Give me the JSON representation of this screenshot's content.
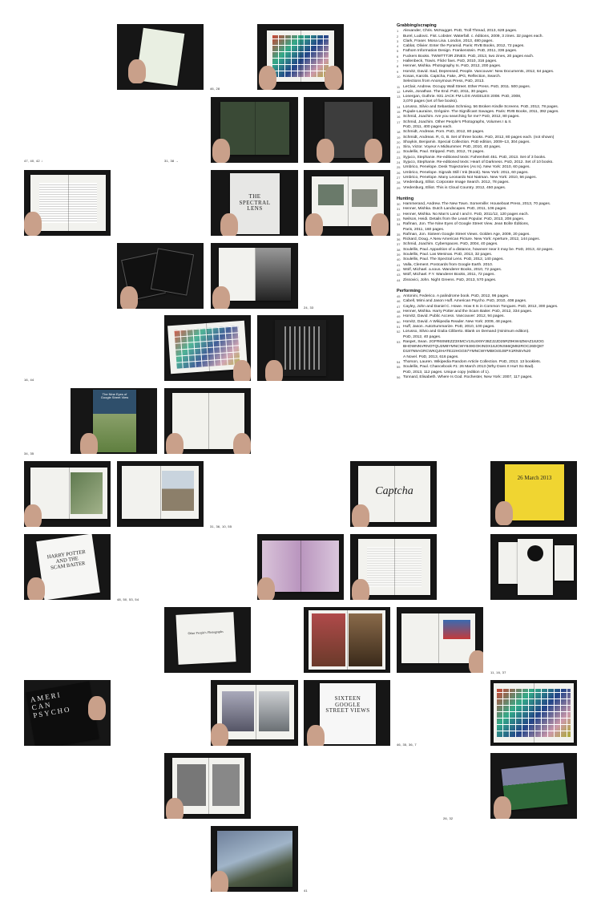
{
  "sections": [
    {
      "heading": "Grabbing/scraping",
      "entries": [
        {
          "n": "1",
          "text": "Alexander, Chris. McNugget. PoD, Troll Thread, 2013, 628 pages."
        },
        {
          "n": "2",
          "text": "Burel, Ludovic. Fist. Lobster. Waterfall. c. éditions, 2009, 3 zines. 32 pages each."
        },
        {
          "n": "3",
          "text": "Clark, Fraser. Mona Lisa. London, 2013, 480 pages."
        },
        {
          "n": "4",
          "text": "Cablat, Olivier. Enter the Pyramid. Paris: RVB Books, 2012, 72 pages."
        },
        {
          "n": "5",
          "text": "Fathom Information Design. Frankenstein. PoD, 2011, 336 pages."
        },
        {
          "n": "6",
          "text": "Fuckers Books. TWWTTT3R ZINES. PoD, 2013, two zines, 20 pages each."
        },
        {
          "n": "7",
          "text": "Hallenbeck, Travis. Flickr favs. PoD, 2010, 316 pages."
        },
        {
          "n": "8",
          "text": "Henner, Mishka. Photography Is. PoD, 2012, 200 pages."
        },
        {
          "n": "9",
          "text": "Horvitz, David. Sad, Depressed, People. Vancouver: New Documents, 2012, 64 pages."
        },
        {
          "n": "10",
          "text": "Kosas, Karolis. Captcha, Fake, JPG, Reflection, Search.\nSelections from Anonymous Press, PoD, 2013."
        },
        {
          "n": "11",
          "text": "LeClair, Andrew. Occupy Wall Street. Ether Press. PoD, 2011. 500 pages."
        },
        {
          "n": "12",
          "text": "Lewis, Jonathan. The End. PoD, 2011, 30 pages."
        },
        {
          "n": "13",
          "text": "Lonergan, Guthrie. 931 JACK FM LOS ANGELES 2008. PoD, 2008,\n3,070 pages (set of five books)."
        },
        {
          "n": "14",
          "text": "Lorusso, Silvio and Sebastian Schmieg. 56 Broken Kindle Screens. PoD, 2012, 78 pages."
        },
        {
          "n": "15",
          "text": "Pujade-Lauraine, Grégoire. The Significant Savages. Paris: RVB Books, 2011, 392 pages."
        },
        {
          "n": "16",
          "text": "Schmid, Joachim. Are you searching for me? PoD, 2012, 80 pages."
        },
        {
          "n": "17",
          "text": "Schmid, Joachim. Other People's Photographs, Volumes I & II.\nPoD, 2011, 400 pages each."
        },
        {
          "n": "18",
          "text": "Schmidt, Andreas. Porn. PoD, 2012, 80 pages."
        },
        {
          "n": "19",
          "text": "Schmidt, Andreas. R, G, B. Set of three books. PoD, 2012, 80 pages each. (not shown)"
        },
        {
          "n": "20",
          "text": "Shaykin, Benjamin. Special Collection. PoD edition, 2009–13, 304 pages."
        },
        {
          "n": "21",
          "text": "Sira, Victor. Voyeur A Midsummer. PoD, 2010, 40 pages."
        },
        {
          "n": "22",
          "text": "Soulellis, Paul. Stripped. PoD, 2012, 74 pages."
        },
        {
          "n": "23",
          "text": "Syjuco, Stephanie. Re-editioned texts: Fahrenheit 451. PoD, 2013. Set of 3 books."
        },
        {
          "n": "24",
          "text": "Syjuco, Stephanie. Re-editioned texts: Heart of Darkness. PoD, 2012. Set of 10 books."
        },
        {
          "n": "25",
          "text": "Umbrico, Penelope. Desk Trajectories (As Is). New York: 2010, 60 pages."
        },
        {
          "n": "26",
          "text": "Umbrico, Penelope. Signals Still / Ink (Book). New York: 2011, 60 pages."
        },
        {
          "n": "27",
          "text": "Umbrico, Penelope. Many Leonardo Not Natman. New York: 2010, 56 pages."
        },
        {
          "n": "28",
          "text": "Vredenburg, Elliot. Corporate Image Search. 2012, 78 pages."
        },
        {
          "n": "29",
          "text": "Vredenburg, Elliot. This is Cloud Country. 2012, 450 pages."
        }
      ]
    },
    {
      "heading": "Hunting",
      "entries": [
        {
          "n": "30",
          "text": "Hammerand, Andrew. The New Town. Somerville: Houseboat Press, 2013, 70 pages."
        },
        {
          "n": "31",
          "text": "Henner, Mishka. Dutch Landscapes. PoD, 2011, 106 pages."
        },
        {
          "n": "32",
          "text": "Henner, Mishka. No Man's Land I and II. PoD, 2011/12, 120 pages each."
        },
        {
          "n": "33",
          "text": "Neilson, Heidi. Details from the Least Popular. PoD, 2013, 208 pages."
        },
        {
          "n": "34",
          "text": "Rafman, Jon. The Nine Eyes of Google Street View. Jean Boîte Éditions,\nParis, 2011, 160 pages."
        },
        {
          "n": "35",
          "text": "Rafman, Jon. Sixteen Google Street Views. Golden Age, 2009, 20 pages."
        },
        {
          "n": "36",
          "text": "Rickard, Doug. A New American Picture. New York: Aperture, 2012, 144 pages."
        },
        {
          "n": "37",
          "text": "Schmid, Joachim. Cyberspaces. PoD, 2004, 40 pages."
        },
        {
          "n": "38",
          "text": "Soulellis, Paul. Apparition of a distance, however near it may be. PoD, 2013, 42 pages."
        },
        {
          "n": "39",
          "text": "Soulellis, Paul. Las Meninas. PoD, 2013, 32 pages."
        },
        {
          "n": "40",
          "text": "Soulellis, Paul. The Spectral Lens. PoD, 2012, 140 pages."
        },
        {
          "n": "41",
          "text": "Valla, Clement. Postcards from Google Earth. 2010."
        },
        {
          "n": "42",
          "text": "Wolf, Michael. a.sous. Wanderer Books, 2010, 72 pages."
        },
        {
          "n": "43",
          "text": "Wolf, Michael. F.Y. Wanderer Books, 2011, 72 pages."
        },
        {
          "n": "44",
          "text": "Zissovici, John. Night Greens. PoD, 2013, 570 pages."
        }
      ]
    },
    {
      "heading": "Performing",
      "entries": [
        {
          "n": "45",
          "text": "Antonini, Federico. A palindrome book. PoD, 2012, 96 pages."
        },
        {
          "n": "46",
          "text": "Cabell, Mimi and Jason Huff. American Psycho. PoD, 2010, 408 pages."
        },
        {
          "n": "47",
          "text": "Cayley, John and Daniel C. Howe. How It Is in Common Tongues. PoD, 2012, 300 pages."
        },
        {
          "n": "48",
          "text": "Henner, Mishka. Harry Potter and the Scam Baiter. PoD, 2012, 334 pages."
        },
        {
          "n": "49",
          "text": "Horvitz, David. Public Access. Vancouver: 2012, 94 pages."
        },
        {
          "n": "50",
          "text": "Horvitz, David. A Wikipedia Reader. New York: 2009, 48 pages."
        },
        {
          "n": "51",
          "text": "Huff, Jason. AutoSummarize. PoD, 2010, 100 pages."
        },
        {
          "n": "52",
          "text": "Lorusso, Silvio and Giulia Ciliberto. Blank on Demand (minimum edition).\nPoD, 2012, 40 pages."
        },
        {
          "n": "53",
          "text": "Raspet, Sean. 2GFR6SMEZZ3XMCV1SL8X9Y38ZJ2JD25RZ9KW4ZMAZ18JOG\nBHOWNNVRNOTQU2M8YMNCWY849GOKINDX16JONS66QM82ROC26DQ87\nD187N9AGRCWKQJIHATE22HGG57YMNCWYMBIO40JSPX1RN5VNJ0\nA Novel. PoD, 2013, 616 pages."
        },
        {
          "n": "54",
          "text": "Thorson, Lauren. Wikipedia Random Article Collection. PoD, 2013. 13 booklets."
        },
        {
          "n": "55",
          "text": "Soulellis, Paul. Chancebook #1: 26 March 2013 (Why Does It Hurt So Bad).\nPoD, 2013, 112 pages. Unique copy (edition of 1)."
        },
        {
          "n": "56",
          "text": "Tonnard, Elisabeth. Where Is God. Rochester, New York: 2007, 117 pages."
        }
      ]
    }
  ],
  "captions": {
    "c1": "46, 28",
    "c2": "47, 40, 42 ↓",
    "c3": "31, 38 →",
    "c4": "16, 44",
    "c5": "24, 33",
    "c6": "34, 35",
    "c7": "31, 36, 10, 55",
    "c8": "48, 50, 53, 54",
    "c9": "11, 16, 37",
    "c10": "46, 35, 36, 7",
    "c11": "26, 32",
    "c12": "41"
  },
  "book_titles": {
    "spectral": "THE\nSPECTRAL\nLENS",
    "nine_eyes": "The Nine Eyes of\nGoogle Street View",
    "captcha": "Captcha",
    "chance": "26 March 2013",
    "harry": "HARRY POTTER\nAND THE\nSCAM BAITER",
    "psycho": "AMERI\nCAN\nPSYCHO",
    "sixteen": "SIXTEEN\nGOOGLE\nSTREET VIEWS",
    "other_people": "Other People's Photographs"
  }
}
